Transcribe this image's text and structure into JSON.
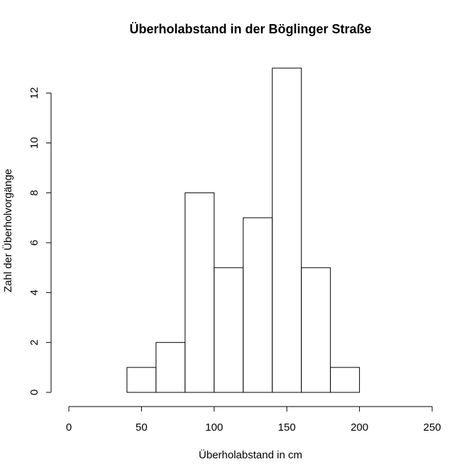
{
  "chart_data": {
    "type": "bar",
    "subtype": "histogram",
    "title": "Überholabstand in der Böglinger Straße",
    "xlabel": "Überholabstand in cm",
    "ylabel": "Zahl der Überholvorgänge",
    "bins": [
      {
        "from": 40,
        "to": 60,
        "count": 1
      },
      {
        "from": 60,
        "to": 80,
        "count": 2
      },
      {
        "from": 80,
        "to": 100,
        "count": 8
      },
      {
        "from": 100,
        "to": 120,
        "count": 5
      },
      {
        "from": 120,
        "to": 140,
        "count": 7
      },
      {
        "from": 140,
        "to": 160,
        "count": 13
      },
      {
        "from": 160,
        "to": 180,
        "count": 5
      },
      {
        "from": 180,
        "to": 200,
        "count": 1
      }
    ],
    "xlim": [
      0,
      250
    ],
    "ylim": [
      0,
      13
    ],
    "xticks": [
      "0",
      "50",
      "100",
      "150",
      "200",
      "250"
    ],
    "yticks": [
      "0",
      "2",
      "4",
      "6",
      "8",
      "10",
      "12"
    ],
    "grid": false,
    "legend": "none",
    "colors": {
      "bar_fill": "#ffffff",
      "bar_stroke": "#000000"
    }
  }
}
